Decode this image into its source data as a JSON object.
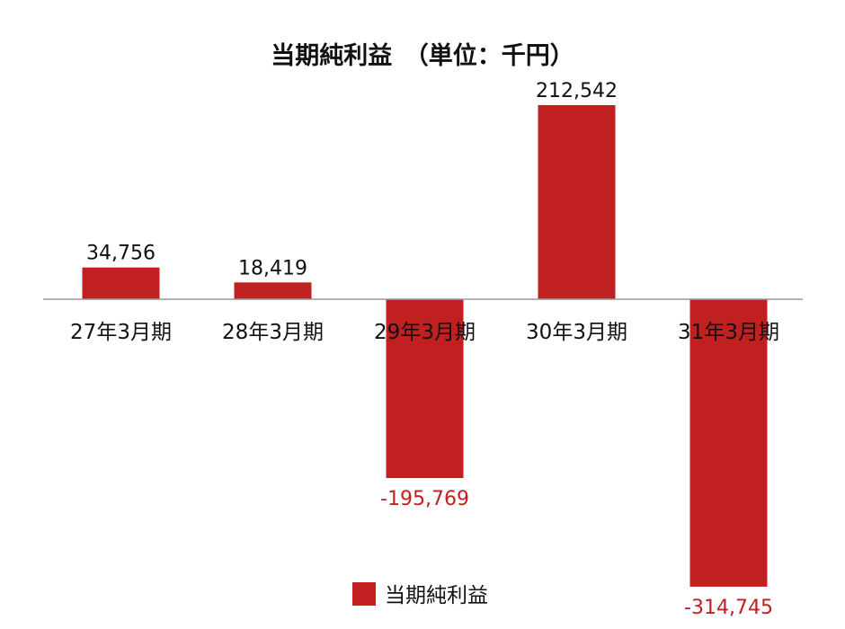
{
  "chart_data": {
    "type": "bar",
    "title": "当期純利益　（単位：千円）",
    "categories": [
      "27年3月期",
      "28年3月期",
      "29年3月期",
      "30年3月期",
      "31年3月期"
    ],
    "series": [
      {
        "name": "当期純利益",
        "values": [
          34756,
          18419,
          -195769,
          212542,
          -314745
        ]
      }
    ],
    "data_labels": [
      "34,756",
      "18,419",
      "-195,769",
      "212,542",
      "-314,745"
    ],
    "legend": {
      "position": "bottom",
      "label": "当期純利益"
    },
    "grid": false,
    "colors": {
      "bar": "#c0201f",
      "negative_label": "#c0201f",
      "text": "#111111",
      "axis": "#999999"
    }
  }
}
